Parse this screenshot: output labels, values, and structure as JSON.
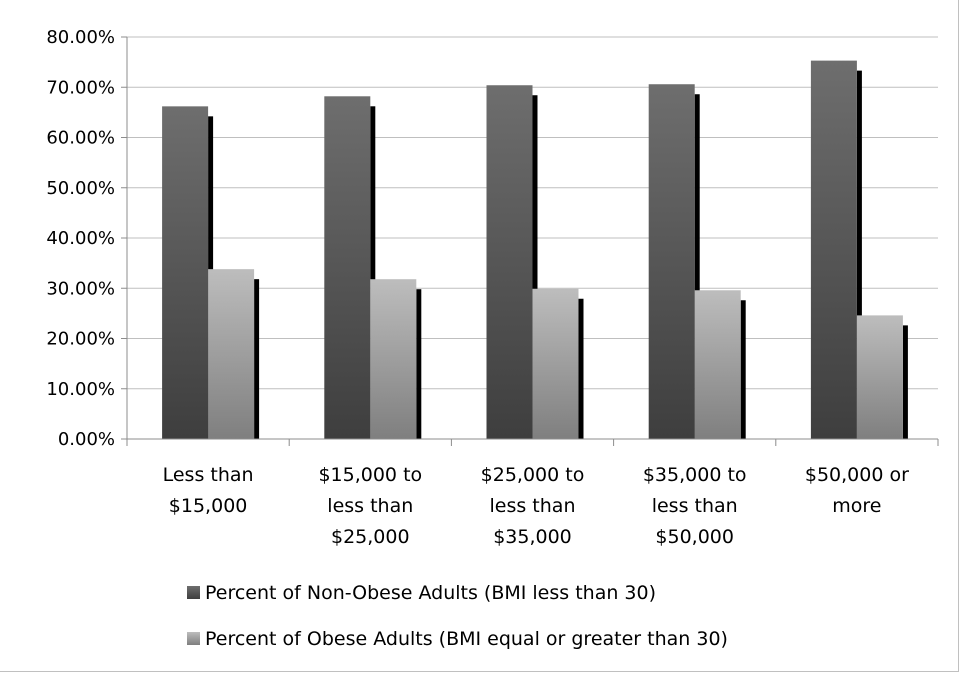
{
  "chart_data": {
    "type": "bar",
    "categories": [
      [
        "Less than",
        "$15,000"
      ],
      [
        "$15,000 to",
        "less than",
        "$25,000"
      ],
      [
        "$25,000 to",
        "less than",
        "$35,000"
      ],
      [
        "$35,000 to",
        "less than",
        "$50,000"
      ],
      [
        "$50,000 or",
        "more"
      ]
    ],
    "series": [
      {
        "name": "Percent of Non-Obese Adults (BMI less than 30)",
        "values": [
          66.2,
          68.2,
          70.4,
          70.6,
          75.3
        ],
        "color_top": "#6e6e6e",
        "color_bottom": "#3e3e3e"
      },
      {
        "name": "Percent of Obese Adults (BMI equal or greater than 30)",
        "values": [
          33.8,
          31.8,
          29.9,
          29.6,
          24.6
        ],
        "color_top": "#bdbdbd",
        "color_bottom": "#7f7f7f"
      }
    ],
    "ylim": [
      0,
      80
    ],
    "yticks": [
      "0.00%",
      "10.00%",
      "20.00%",
      "30.00%",
      "40.00%",
      "50.00%",
      "60.00%",
      "70.00%",
      "80.00%"
    ],
    "grid": true,
    "legend_position": "bottom",
    "title": "",
    "xlabel": "",
    "ylabel": ""
  }
}
